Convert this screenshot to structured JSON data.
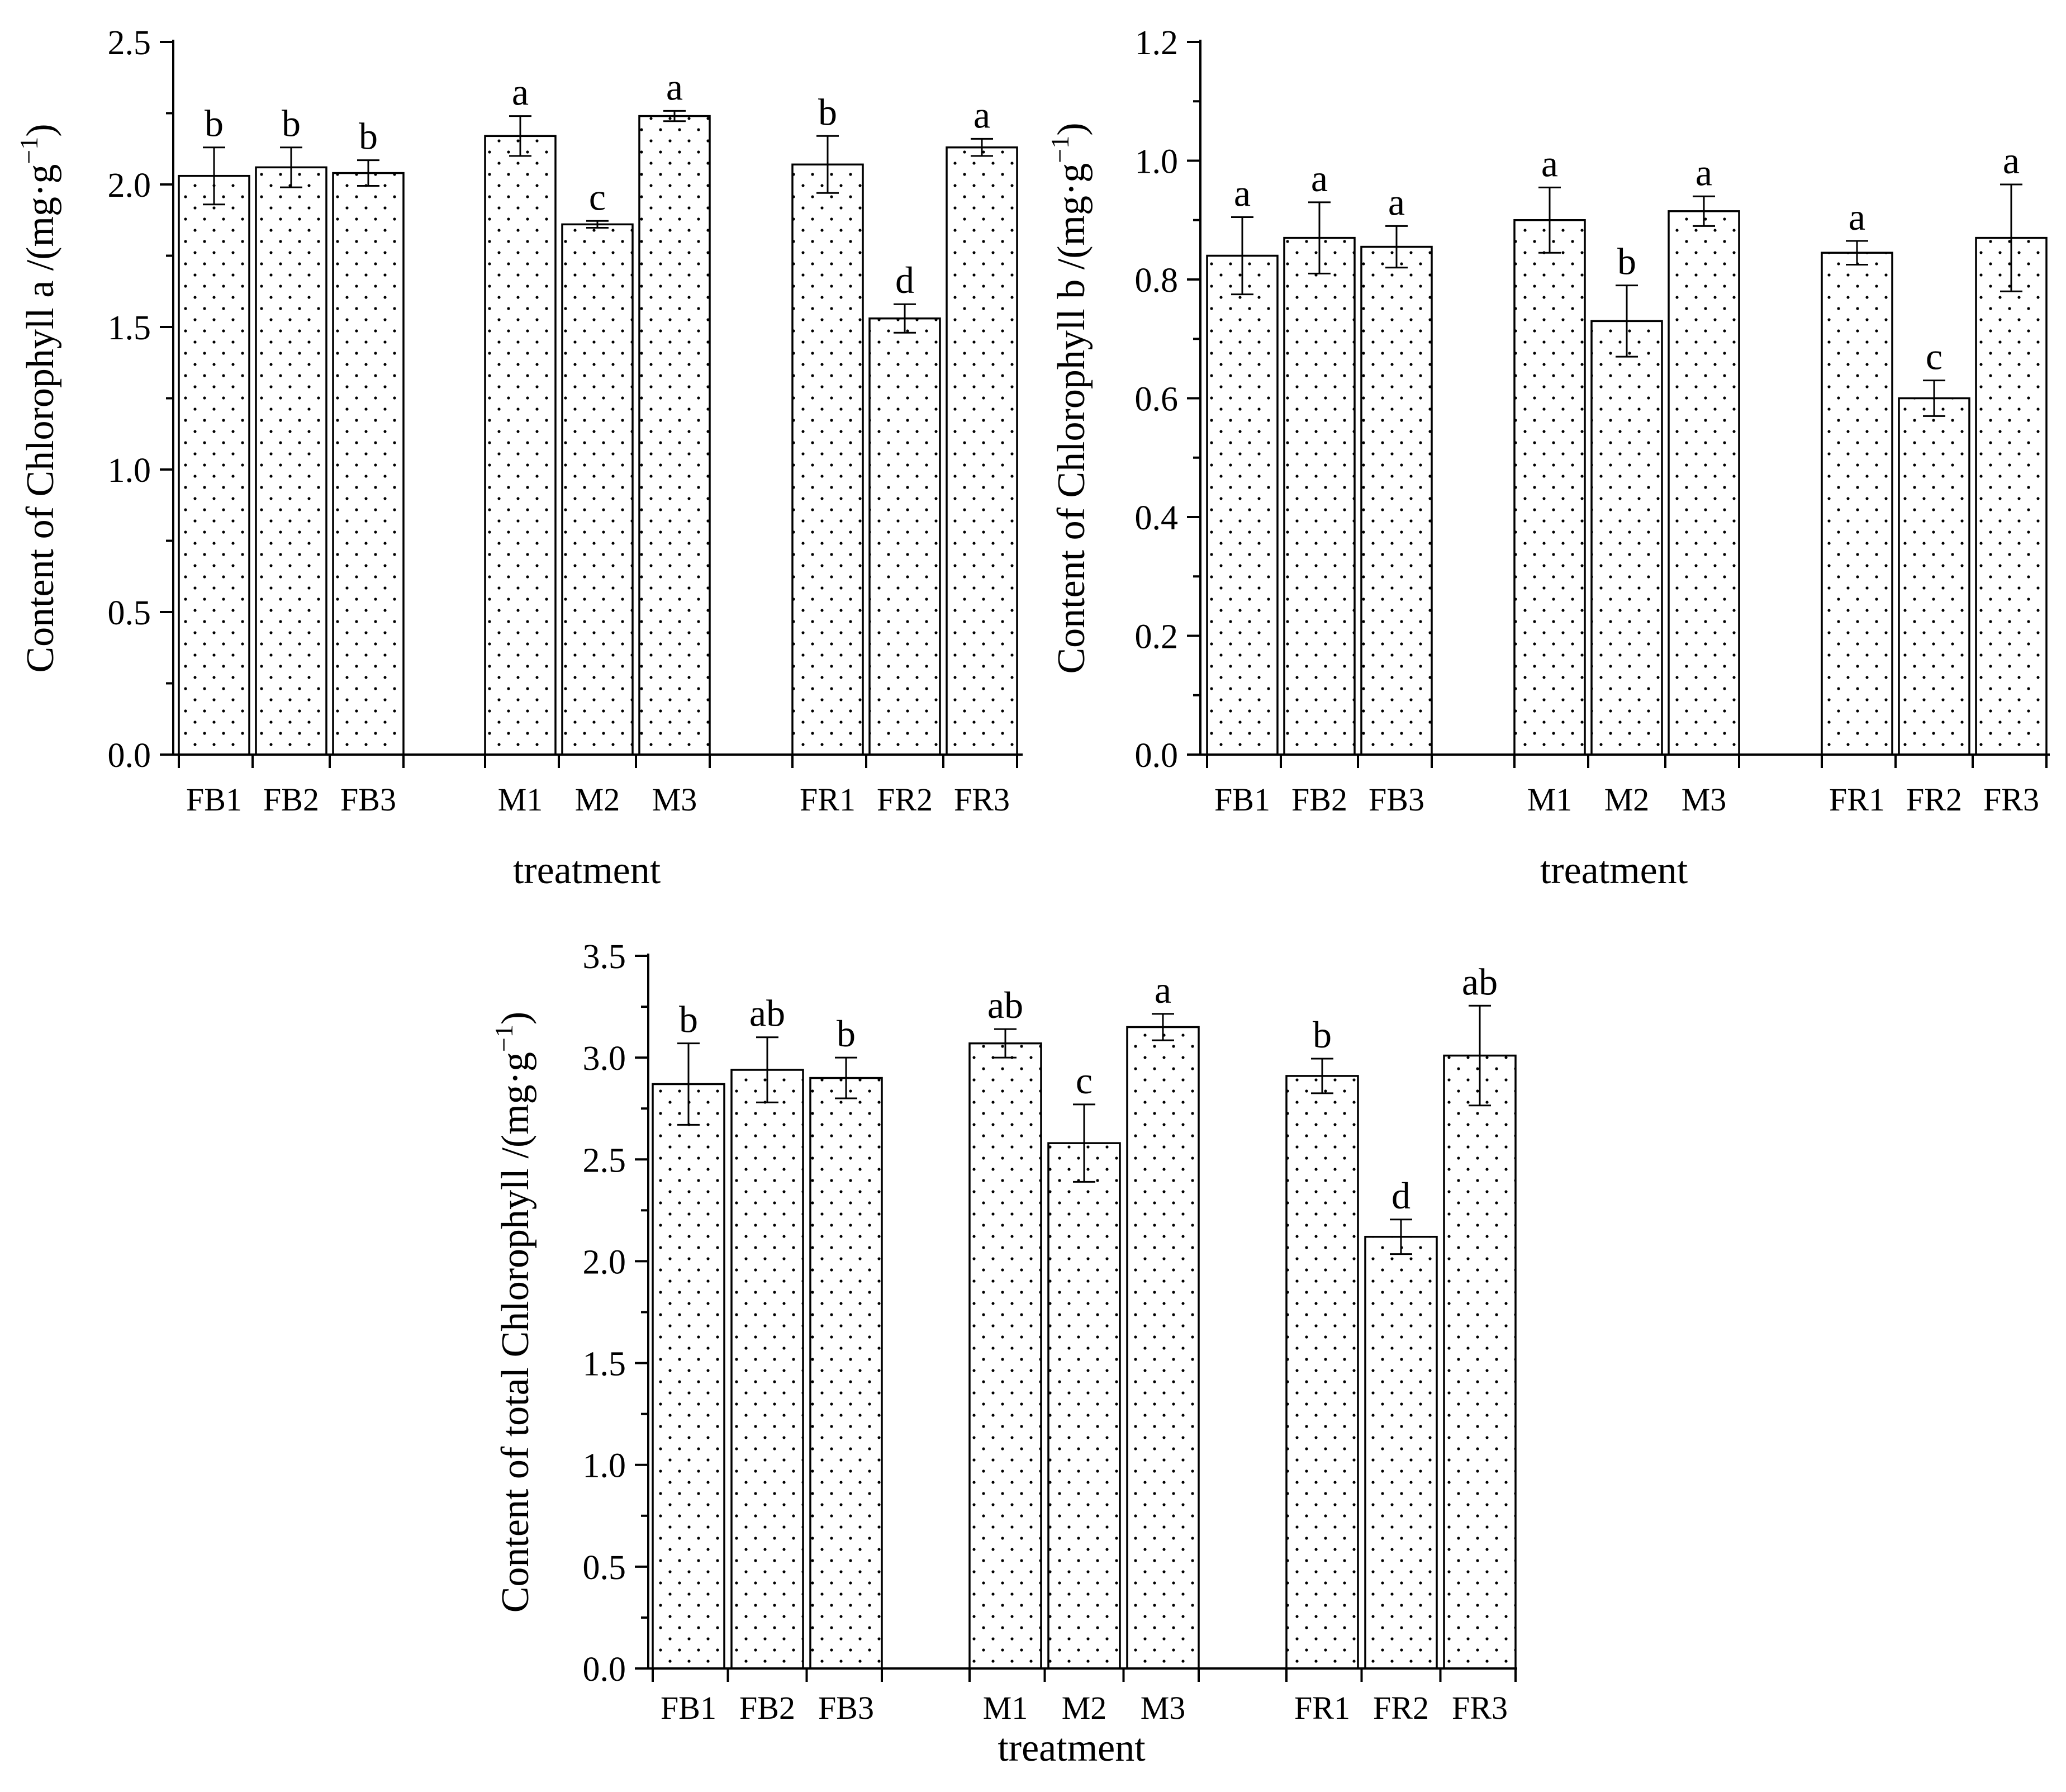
{
  "chart_data": [
    {
      "type": "bar",
      "title": "",
      "ylabel_main": "Content of Chlorophyll a /(mg·g",
      "ylabel_sup": "−1",
      "ylabel_close": ")",
      "xlabel": "treatment",
      "ylim": [
        0,
        2.5
      ],
      "yticks": [
        0.0,
        0.5,
        1.0,
        1.5,
        2.0,
        2.5
      ],
      "ytick_labels": [
        "0.0",
        "0.5",
        "1.0",
        "1.5",
        "2.0",
        "2.5"
      ],
      "pattern": "dots",
      "groups": [
        {
          "categories": [
            "FB1",
            "FB2",
            "FB3"
          ],
          "values": [
            2.03,
            2.06,
            2.04
          ],
          "errors": [
            0.1,
            0.07,
            0.045
          ],
          "letters": [
            "b",
            "b",
            "b"
          ]
        },
        {
          "categories": [
            "M1",
            "M2",
            "M3"
          ],
          "values": [
            2.17,
            1.86,
            2.24
          ],
          "errors": [
            0.07,
            0.012,
            0.018
          ],
          "letters": [
            "a",
            "c",
            "a"
          ]
        },
        {
          "categories": [
            "FR1",
            "FR2",
            "FR3"
          ],
          "values": [
            2.07,
            1.53,
            2.13
          ],
          "errors": [
            0.1,
            0.05,
            0.03
          ],
          "letters": [
            "b",
            "d",
            "a"
          ]
        }
      ]
    },
    {
      "type": "bar",
      "title": "",
      "ylabel_main": "Content of Chlorophyll b /(mg·g",
      "ylabel_sup": "−1",
      "ylabel_close": ")",
      "xlabel": "treatment",
      "ylim": [
        0,
        1.2
      ],
      "yticks": [
        0.0,
        0.2,
        0.4,
        0.6,
        0.8,
        1.0,
        1.2
      ],
      "ytick_labels": [
        "0.0",
        "0.2",
        "0.4",
        "0.6",
        "0.8",
        "1.0",
        "1.2"
      ],
      "pattern": "dots",
      "groups": [
        {
          "categories": [
            "FB1",
            "FB2",
            "FB3"
          ],
          "values": [
            0.84,
            0.87,
            0.855
          ],
          "errors": [
            0.065,
            0.06,
            0.035
          ],
          "letters": [
            "a",
            "a",
            "a"
          ]
        },
        {
          "categories": [
            "M1",
            "M2",
            "M3"
          ],
          "values": [
            0.9,
            0.73,
            0.915
          ],
          "errors": [
            0.055,
            0.06,
            0.025
          ],
          "letters": [
            "a",
            "b",
            "a"
          ]
        },
        {
          "categories": [
            "FR1",
            "FR2",
            "FR3"
          ],
          "values": [
            0.845,
            0.6,
            0.87
          ],
          "errors": [
            0.02,
            0.03,
            0.09
          ],
          "letters": [
            "a",
            "c",
            "a"
          ]
        }
      ]
    },
    {
      "type": "bar",
      "title": "",
      "ylabel_main": "Content of total Chlorophyll /(mg·g",
      "ylabel_sup": "−1",
      "ylabel_close": ")",
      "xlabel": "treatment",
      "ylim": [
        0,
        3.5
      ],
      "yticks": [
        0.0,
        0.5,
        1.0,
        1.5,
        2.0,
        2.5,
        3.0,
        3.5
      ],
      "ytick_labels": [
        "0.0",
        "0.5",
        "1.0",
        "1.5",
        "2.0",
        "2.5",
        "3.0",
        "3.5"
      ],
      "pattern": "dots",
      "groups": [
        {
          "categories": [
            "FB1",
            "FB2",
            "FB3"
          ],
          "values": [
            2.87,
            2.94,
            2.9
          ],
          "errors": [
            0.2,
            0.16,
            0.1
          ],
          "letters": [
            "b",
            "ab",
            "b"
          ]
        },
        {
          "categories": [
            "M1",
            "M2",
            "M3"
          ],
          "values": [
            3.07,
            2.58,
            3.15
          ],
          "errors": [
            0.07,
            0.19,
            0.065
          ],
          "letters": [
            "ab",
            "c",
            "a"
          ]
        },
        {
          "categories": [
            "FR1",
            "FR2",
            "FR3"
          ],
          "values": [
            2.91,
            2.12,
            3.01
          ],
          "errors": [
            0.085,
            0.085,
            0.245
          ],
          "letters": [
            "b",
            "d",
            "ab"
          ]
        }
      ]
    }
  ]
}
